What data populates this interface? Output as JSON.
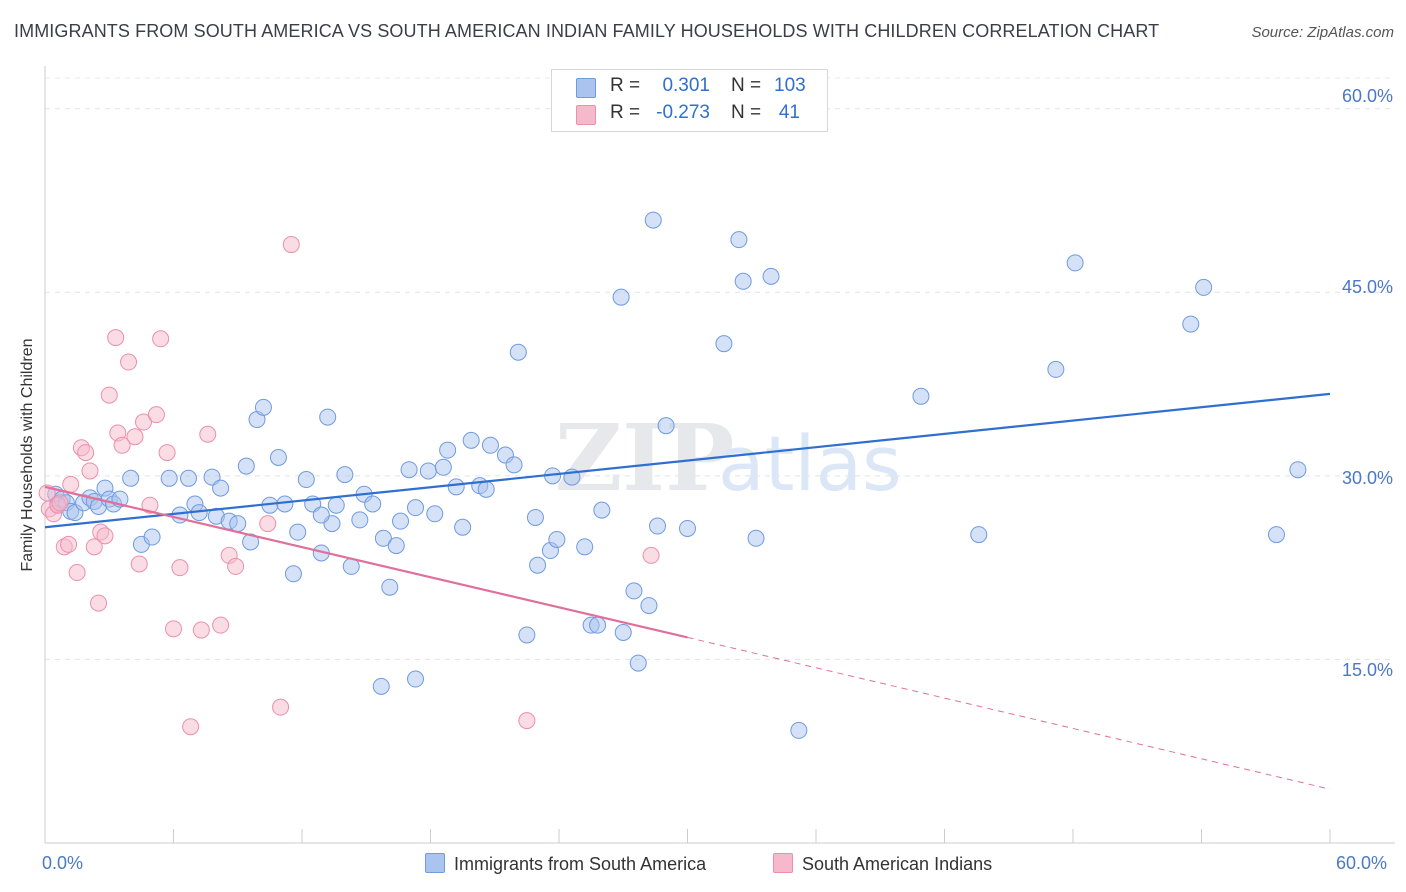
{
  "title": "IMMIGRANTS FROM SOUTH AMERICA VS SOUTH AMERICAN INDIAN FAMILY HOUSEHOLDS WITH CHILDREN CORRELATION CHART",
  "source": "Source: ZipAtlas.com",
  "watermark": {
    "part1": "ZIP",
    "part2": "atlas"
  },
  "legend_box": {
    "rows": [
      {
        "r_label": "R =",
        "r_value": "0.301",
        "n_label": "N =",
        "n_value": "103",
        "color": "#a9c4ee",
        "border": "#6f9be0"
      },
      {
        "r_label": "R =",
        "r_value": "-0.273",
        "n_label": "N =",
        "n_value": "41",
        "color": "#f6b9cb",
        "border": "#ec8fab"
      }
    ]
  },
  "chart_data": {
    "type": "scatter",
    "title": "IMMIGRANTS FROM SOUTH AMERICA VS SOUTH AMERICAN INDIAN FAMILY HOUSEHOLDS WITH CHILDREN CORRELATION CHART",
    "xlabel": "",
    "ylabel": "Family Households with Children",
    "xlim": [
      0,
      60
    ],
    "ylim": [
      0,
      63
    ],
    "x_tick_labels": [
      "0.0%",
      "60.0%"
    ],
    "y_ticks": [
      15,
      30,
      45,
      60
    ],
    "y_tick_labels": [
      "15.0%",
      "30.0%",
      "45.0%",
      "60.0%"
    ],
    "grid": true,
    "series": [
      {
        "name": "Immigrants from South America",
        "color": "#a9c4ee",
        "stroke": "#6f9be0",
        "trend": {
          "x": [
            0,
            60
          ],
          "y": [
            25.8,
            36.7
          ],
          "color": "#2f6fd0"
        },
        "points": [
          [
            0.5,
            28.5
          ],
          [
            0.6,
            27.7
          ],
          [
            0.8,
            28.1
          ],
          [
            1.0,
            27.8
          ],
          [
            1.2,
            27.1
          ],
          [
            1.4,
            27.0
          ],
          [
            1.8,
            27.8
          ],
          [
            2.1,
            28.2
          ],
          [
            2.3,
            27.9
          ],
          [
            2.5,
            27.5
          ],
          [
            2.8,
            29.0
          ],
          [
            3.0,
            28.1
          ],
          [
            3.2,
            27.7
          ],
          [
            3.5,
            28.1
          ],
          [
            4.0,
            29.8
          ],
          [
            4.5,
            24.4
          ],
          [
            5.0,
            25.0
          ],
          [
            5.8,
            29.8
          ],
          [
            6.3,
            26.8
          ],
          [
            6.7,
            29.8
          ],
          [
            7.0,
            27.7
          ],
          [
            7.2,
            27.0
          ],
          [
            7.8,
            29.9
          ],
          [
            8.0,
            26.7
          ],
          [
            8.2,
            29.0
          ],
          [
            8.6,
            26.3
          ],
          [
            9.0,
            26.1
          ],
          [
            9.4,
            30.8
          ],
          [
            9.6,
            24.6
          ],
          [
            9.9,
            34.6
          ],
          [
            10.2,
            35.6
          ],
          [
            10.5,
            27.6
          ],
          [
            10.9,
            31.5
          ],
          [
            11.2,
            27.7
          ],
          [
            11.6,
            22.0
          ],
          [
            11.8,
            25.4
          ],
          [
            12.2,
            29.7
          ],
          [
            12.5,
            27.7
          ],
          [
            12.9,
            23.7
          ],
          [
            13.2,
            34.8
          ],
          [
            13.4,
            26.1
          ],
          [
            13.6,
            27.6
          ],
          [
            14.0,
            30.1
          ],
          [
            14.3,
            22.6
          ],
          [
            14.7,
            26.4
          ],
          [
            14.9,
            28.5
          ],
          [
            15.3,
            27.7
          ],
          [
            15.8,
            24.9
          ],
          [
            16.1,
            20.9
          ],
          [
            16.4,
            24.3
          ],
          [
            16.6,
            26.3
          ],
          [
            17.0,
            30.5
          ],
          [
            17.3,
            27.4
          ],
          [
            17.9,
            30.4
          ],
          [
            18.2,
            26.9
          ],
          [
            18.6,
            30.7
          ],
          [
            18.8,
            32.1
          ],
          [
            19.2,
            29.1
          ],
          [
            19.5,
            25.8
          ],
          [
            19.9,
            32.9
          ],
          [
            20.3,
            29.2
          ],
          [
            20.6,
            28.9
          ],
          [
            20.8,
            32.5
          ],
          [
            21.5,
            31.7
          ],
          [
            21.9,
            30.9
          ],
          [
            22.1,
            40.1
          ],
          [
            22.5,
            17.0
          ],
          [
            22.9,
            26.6
          ],
          [
            23.0,
            22.7
          ],
          [
            23.6,
            23.9
          ],
          [
            23.7,
            30.0
          ],
          [
            23.9,
            24.8
          ],
          [
            24.6,
            29.9
          ],
          [
            25.2,
            24.2
          ],
          [
            25.5,
            17.8
          ],
          [
            25.8,
            17.8
          ],
          [
            26.0,
            27.2
          ],
          [
            26.9,
            44.6
          ],
          [
            27.0,
            17.2
          ],
          [
            27.5,
            20.6
          ],
          [
            27.7,
            14.7
          ],
          [
            28.2,
            19.4
          ],
          [
            28.4,
            50.9
          ],
          [
            28.6,
            25.9
          ],
          [
            29.0,
            34.1
          ],
          [
            30.0,
            25.7
          ],
          [
            31.7,
            40.8
          ],
          [
            32.4,
            49.3
          ],
          [
            32.6,
            45.9
          ],
          [
            33.2,
            24.9
          ],
          [
            33.9,
            46.3
          ],
          [
            35.2,
            9.2
          ],
          [
            40.9,
            36.5
          ],
          [
            43.6,
            25.2
          ],
          [
            47.2,
            38.7
          ],
          [
            48.1,
            47.4
          ],
          [
            53.5,
            42.4
          ],
          [
            54.1,
            45.4
          ],
          [
            57.5,
            25.2
          ],
          [
            58.5,
            30.5
          ],
          [
            12.9,
            26.8
          ],
          [
            15.7,
            12.8
          ],
          [
            17.3,
            13.4
          ]
        ]
      },
      {
        "name": "South American Indians",
        "color": "#f6b9cb",
        "stroke": "#ec8fab",
        "trend": {
          "x": [
            0,
            30
          ],
          "y": [
            29.1,
            16.8
          ],
          "dashed_to": {
            "x": 60,
            "y": 4.4
          },
          "color": "#e0709a"
        },
        "points": [
          [
            0.1,
            28.6
          ],
          [
            0.2,
            27.3
          ],
          [
            0.4,
            26.9
          ],
          [
            0.6,
            27.6
          ],
          [
            0.7,
            27.8
          ],
          [
            0.9,
            24.2
          ],
          [
            1.1,
            24.4
          ],
          [
            1.2,
            29.3
          ],
          [
            1.5,
            22.1
          ],
          [
            1.7,
            32.3
          ],
          [
            1.9,
            31.9
          ],
          [
            2.1,
            30.4
          ],
          [
            2.3,
            24.2
          ],
          [
            2.5,
            19.6
          ],
          [
            2.6,
            25.4
          ],
          [
            2.8,
            25.1
          ],
          [
            3.0,
            36.6
          ],
          [
            3.3,
            41.3
          ],
          [
            3.4,
            33.5
          ],
          [
            3.6,
            32.5
          ],
          [
            3.9,
            39.3
          ],
          [
            4.2,
            33.2
          ],
          [
            4.4,
            22.8
          ],
          [
            4.6,
            34.4
          ],
          [
            4.9,
            27.6
          ],
          [
            5.2,
            35.0
          ],
          [
            5.4,
            41.2
          ],
          [
            5.7,
            31.9
          ],
          [
            6.0,
            17.5
          ],
          [
            6.3,
            22.5
          ],
          [
            6.8,
            9.5
          ],
          [
            7.3,
            17.4
          ],
          [
            7.6,
            33.4
          ],
          [
            8.2,
            17.8
          ],
          [
            8.6,
            23.5
          ],
          [
            8.9,
            22.6
          ],
          [
            10.4,
            26.1
          ],
          [
            11.0,
            11.1
          ],
          [
            11.5,
            48.9
          ],
          [
            22.5,
            10.0
          ],
          [
            28.3,
            23.5
          ]
        ]
      }
    ]
  },
  "bottom_legend": [
    {
      "label": "Immigrants from South America",
      "color": "#a9c4ee",
      "border": "#6f9be0"
    },
    {
      "label": "South American Indians",
      "color": "#f6b9cb",
      "border": "#ec8fab"
    }
  ]
}
